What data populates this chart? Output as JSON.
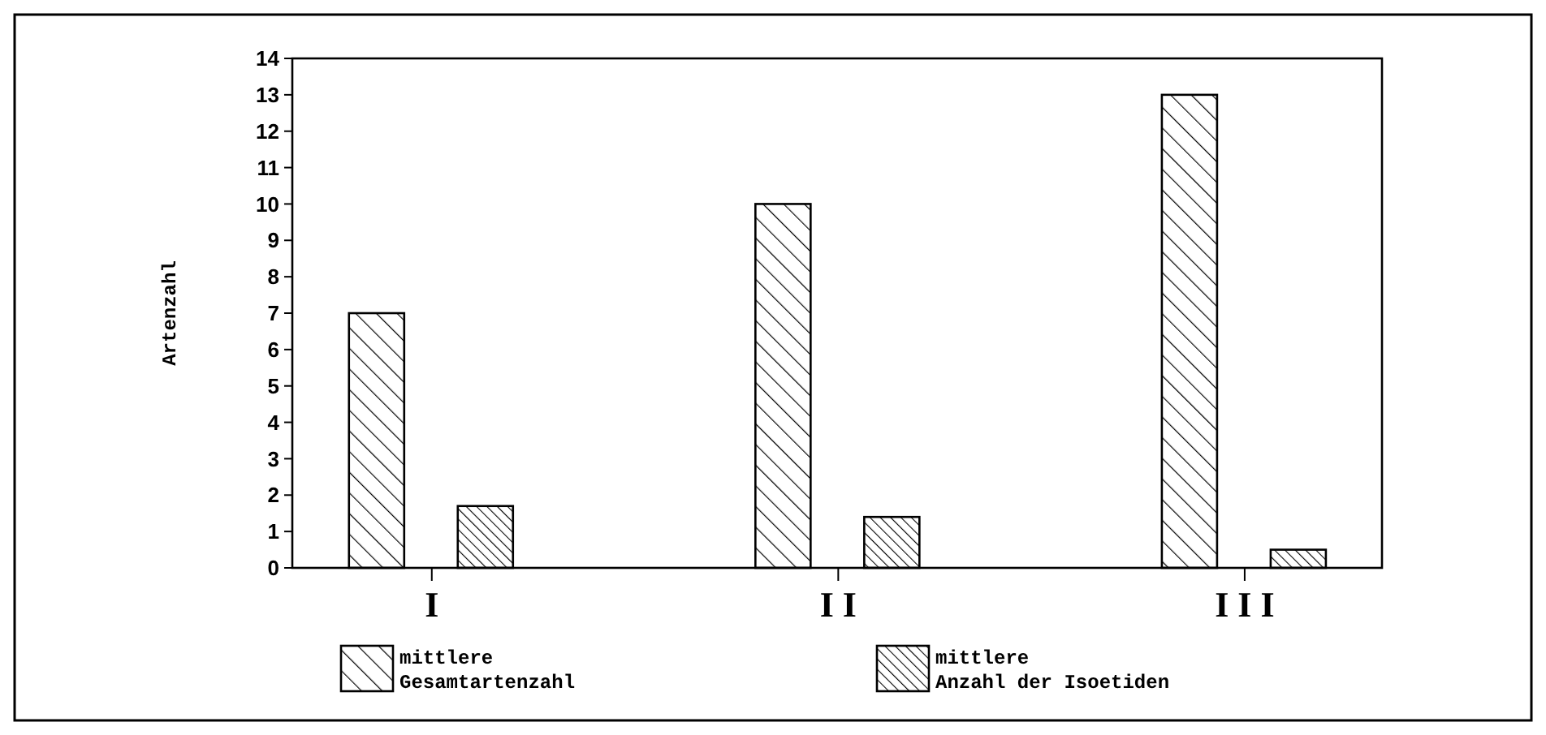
{
  "chart_data": {
    "type": "bar",
    "ylabel": "Artenzahl",
    "categories": [
      "I",
      "I I",
      "I I I"
    ],
    "series": [
      {
        "name": "mittlere Gesamtartenzahl",
        "color": "#000000",
        "values": [
          7,
          10,
          13
        ]
      },
      {
        "name": "mittlere Anzahl der Isoetiden",
        "color": "#000000",
        "values": [
          1.7,
          1.4,
          0.5
        ]
      }
    ],
    "ylim": [
      0,
      14
    ],
    "yticks": [
      0,
      1,
      2,
      3,
      4,
      5,
      6,
      7,
      8,
      9,
      10,
      11,
      12,
      13,
      14
    ],
    "grid": false,
    "legend": "bottom"
  }
}
